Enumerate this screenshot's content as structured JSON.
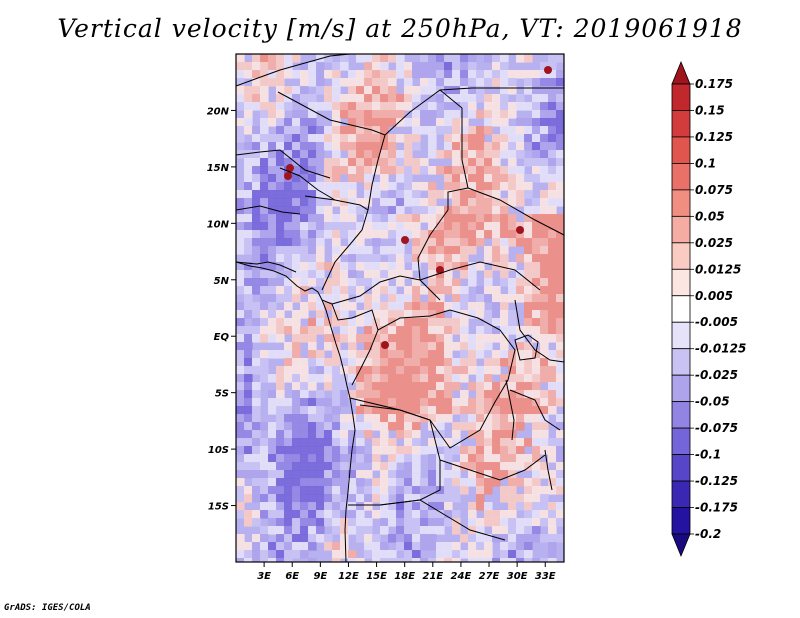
{
  "title": "Vertical velocity [m/s] at 250hPa, VT: 2019061918",
  "credit": "GrADS: IGES/COLA",
  "map": {
    "variable": "Vertical velocity",
    "units": "m/s",
    "level": "250hPa",
    "valid_time": "2019061918",
    "lon_range": [
      0,
      35
    ],
    "lat_range": [
      -20,
      25
    ],
    "lat_ticks": [
      {
        "value": 20,
        "label": "20N"
      },
      {
        "value": 15,
        "label": "15N"
      },
      {
        "value": 10,
        "label": "10N"
      },
      {
        "value": 5,
        "label": "5N"
      },
      {
        "value": 0,
        "label": "EQ"
      },
      {
        "value": -5,
        "label": "5S"
      },
      {
        "value": -10,
        "label": "10S"
      },
      {
        "value": -15,
        "label": "15S"
      }
    ],
    "lon_ticks": [
      {
        "value": 3,
        "label": "3E"
      },
      {
        "value": 6,
        "label": "6E"
      },
      {
        "value": 9,
        "label": "9E"
      },
      {
        "value": 12,
        "label": "12E"
      },
      {
        "value": 15,
        "label": "15E"
      },
      {
        "value": 18,
        "label": "18E"
      },
      {
        "value": 21,
        "label": "21E"
      },
      {
        "value": 24,
        "label": "24E"
      },
      {
        "value": 27,
        "label": "27E"
      },
      {
        "value": 30,
        "label": "30E"
      },
      {
        "value": 33,
        "label": "33E"
      }
    ]
  },
  "colorbar": {
    "labels": [
      "0.175",
      "0.15",
      "0.125",
      "0.1",
      "0.075",
      "0.05",
      "0.025",
      "0.0125",
      "0.005",
      "-0.005",
      "-0.0125",
      "-0.025",
      "-0.05",
      "-0.075",
      "-0.1",
      "-0.125",
      "-0.175",
      "-0.2"
    ],
    "colors": [
      "#a0141e",
      "#c0282d",
      "#d23c3c",
      "#e0564f",
      "#ea7167",
      "#f08e82",
      "#f5ada3",
      "#f9cbc3",
      "#fce6e2",
      "#ffffff",
      "#e6e2fa",
      "#c9c3f4",
      "#ada4ec",
      "#9185e3",
      "#7466d8",
      "#5746c8",
      "#3a28b4",
      "#2412a0",
      "#1a0a80"
    ]
  }
}
